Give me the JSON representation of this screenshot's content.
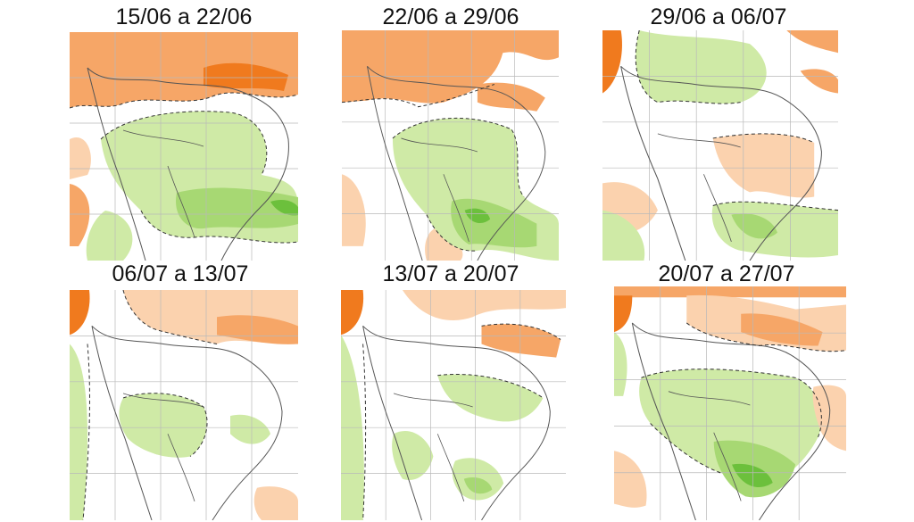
{
  "figure": {
    "panels": [
      {
        "title": "15/06 a 22/06"
      },
      {
        "title": "22/06 a 29/06"
      },
      {
        "title": "29/06 a 06/07"
      },
      {
        "title": "06/07 a 13/07"
      },
      {
        "title": "13/07 a 20/07"
      },
      {
        "title": "20/07 a 27/07"
      }
    ],
    "colors": {
      "dry_strong": "#f07a1e",
      "dry": "#f6a667",
      "dry_light": "#fbd2ae",
      "wet_light": "#cfeaa6",
      "wet": "#a7d873",
      "wet_strong": "#6cc03c",
      "grid": "#b9b9b9",
      "border": "#555555",
      "contour": "#333333"
    }
  }
}
